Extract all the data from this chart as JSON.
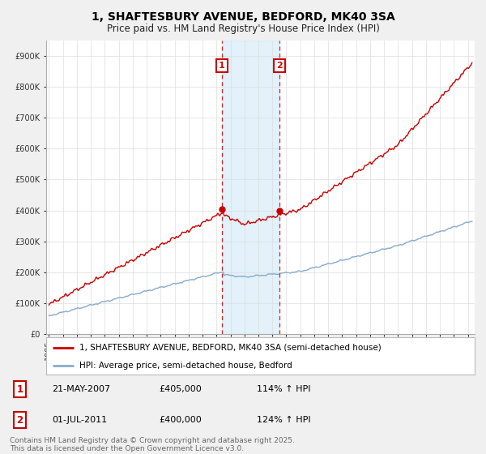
{
  "title": "1, SHAFTESBURY AVENUE, BEDFORD, MK40 3SA",
  "subtitle": "Price paid vs. HM Land Registry's House Price Index (HPI)",
  "yticks": [
    0,
    100000,
    200000,
    300000,
    400000,
    500000,
    600000,
    700000,
    800000,
    900000
  ],
  "ytick_labels": [
    "£0",
    "£100K",
    "£200K",
    "£300K",
    "£400K",
    "£500K",
    "£600K",
    "£700K",
    "£800K",
    "£900K"
  ],
  "xlim_start": 1994.8,
  "xlim_end": 2025.5,
  "ylim": [
    0,
    950000
  ],
  "marker1_date": 2007.38,
  "marker1_price": 405000,
  "marker1_label": "1",
  "marker2_date": 2011.5,
  "marker2_price": 400000,
  "marker2_label": "2",
  "shade_color": "#d0e8f8",
  "shade_alpha": 0.6,
  "red_line_color": "#cc0000",
  "blue_line_color": "#88aacc",
  "annotation_box_color": "#cc0000",
  "legend_red_label": "1, SHAFTESBURY AVENUE, BEDFORD, MK40 3SA (semi-detached house)",
  "legend_blue_label": "HPI: Average price, semi-detached house, Bedford",
  "table_row1": [
    "1",
    "21-MAY-2007",
    "£405,000",
    "114% ↑ HPI"
  ],
  "table_row2": [
    "2",
    "01-JUL-2011",
    "£400,000",
    "124% ↑ HPI"
  ],
  "footer": "Contains HM Land Registry data © Crown copyright and database right 2025.\nThis data is licensed under the Open Government Licence v3.0.",
  "bg_color": "#f0f0f0",
  "plot_bg_color": "#ffffff",
  "title_fontsize": 10,
  "subtitle_fontsize": 8.5,
  "tick_fontsize": 7,
  "legend_fontsize": 7.5,
  "footer_fontsize": 6.5
}
